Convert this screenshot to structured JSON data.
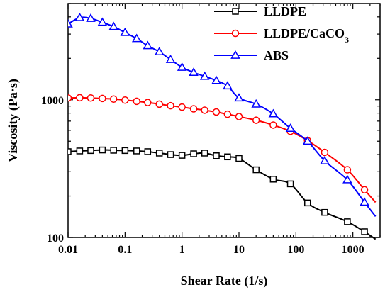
{
  "chart_data": {
    "type": "line",
    "xlabel": "Shear Rate (1/s)",
    "ylabel": "Viscosity (Pa·s)",
    "xscale": "log",
    "yscale": "log",
    "xlim": [
      0.01,
      3000
    ],
    "ylim": [
      100,
      5000
    ],
    "xticks": [
      {
        "value": 0.01,
        "label": "0.01"
      },
      {
        "value": 0.1,
        "label": "0.1"
      },
      {
        "value": 1,
        "label": "1"
      },
      {
        "value": 10,
        "label": "10"
      },
      {
        "value": 100,
        "label": "100"
      },
      {
        "value": 1000,
        "label": "1000"
      }
    ],
    "yticks": [
      {
        "value": 100,
        "label": "100"
      },
      {
        "value": 1000,
        "label": "1000"
      }
    ],
    "grid": false,
    "legend_position": "top-right",
    "series": [
      {
        "name": "LLDPE",
        "color": "#000000",
        "marker": "square",
        "x": [
          0.01,
          0.016,
          0.025,
          0.04,
          0.063,
          0.1,
          0.16,
          0.25,
          0.4,
          0.63,
          1,
          1.6,
          2.5,
          4,
          6.3,
          10,
          20,
          40,
          80,
          160,
          320,
          800,
          1600,
          2500
        ],
        "y": [
          420,
          425,
          428,
          432,
          430,
          428,
          425,
          420,
          410,
          400,
          395,
          405,
          410,
          392,
          385,
          375,
          310,
          265,
          245,
          178,
          152,
          130,
          110,
          97
        ]
      },
      {
        "name": "LLDPE/CaCO",
        "name_subscript": "3",
        "color": "#ff0000",
        "marker": "circle",
        "x": [
          0.01,
          0.016,
          0.025,
          0.04,
          0.063,
          0.1,
          0.16,
          0.25,
          0.4,
          0.63,
          1,
          1.6,
          2.5,
          4,
          6.3,
          10,
          20,
          40,
          80,
          160,
          320,
          800,
          1600,
          2500
        ],
        "y": [
          1030,
          1035,
          1030,
          1022,
          1012,
          995,
          975,
          955,
          930,
          905,
          885,
          860,
          840,
          815,
          785,
          755,
          710,
          655,
          590,
          505,
          415,
          310,
          222,
          180
        ]
      },
      {
        "name": "ABS",
        "color": "#0000ff",
        "marker": "triangle",
        "x": [
          0.01,
          0.016,
          0.025,
          0.04,
          0.063,
          0.1,
          0.16,
          0.25,
          0.4,
          0.63,
          1,
          1.6,
          2.5,
          4,
          6.3,
          10,
          20,
          40,
          80,
          160,
          320,
          800,
          1600,
          2500
        ],
        "y": [
          3550,
          3950,
          3900,
          3650,
          3400,
          3080,
          2780,
          2470,
          2230,
          1960,
          1720,
          1580,
          1480,
          1380,
          1260,
          1030,
          930,
          790,
          620,
          500,
          360,
          262,
          180,
          142
        ]
      }
    ]
  }
}
